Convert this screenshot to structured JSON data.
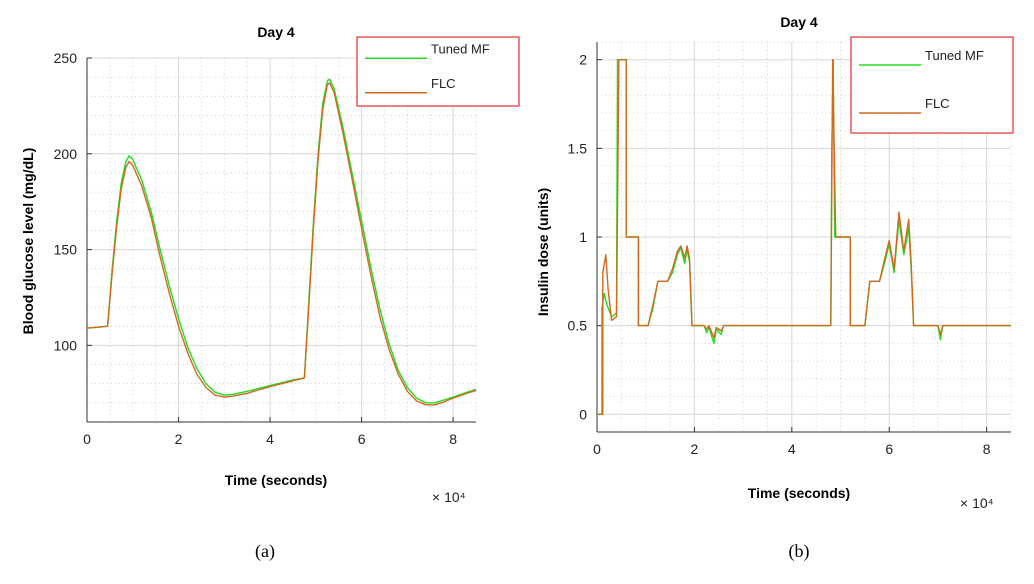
{
  "chart_data": [
    {
      "panel": "a",
      "type": "line",
      "title": "Day 4",
      "xlabel": "Time (seconds)",
      "ylabel": "Blood glucose level (mg/dL)",
      "x_multiplier": "× 10⁴",
      "xlim": [
        0,
        8.5
      ],
      "ylim": [
        60,
        250
      ],
      "xticks": [
        0,
        2,
        4,
        6,
        8
      ],
      "yticks": [
        100,
        150,
        200,
        250
      ],
      "grid": true,
      "legend_position": "top-right",
      "caption": "(a)",
      "series": [
        {
          "name": "Tuned MF",
          "color": "#22dd22",
          "points": [
            [
              0,
              109
            ],
            [
              0.25,
              109.5
            ],
            [
              0.45,
              110
            ],
            [
              0.55,
              140
            ],
            [
              0.65,
              165
            ],
            [
              0.75,
              185
            ],
            [
              0.85,
              196
            ],
            [
              0.92,
              199
            ],
            [
              1.0,
              197
            ],
            [
              1.2,
              186
            ],
            [
              1.4,
              170
            ],
            [
              1.6,
              150
            ],
            [
              1.8,
              131
            ],
            [
              2.0,
              114
            ],
            [
              2.2,
              99
            ],
            [
              2.4,
              88
            ],
            [
              2.6,
              80
            ],
            [
              2.8,
              75.5
            ],
            [
              3.0,
              74
            ],
            [
              3.2,
              74.5
            ],
            [
              3.5,
              76
            ],
            [
              4.0,
              79
            ],
            [
              4.5,
              82
            ],
            [
              4.75,
              83
            ],
            [
              4.85,
              125
            ],
            [
              4.95,
              165
            ],
            [
              5.05,
              200
            ],
            [
              5.15,
              226
            ],
            [
              5.25,
              238
            ],
            [
              5.3,
              239
            ],
            [
              5.4,
              234
            ],
            [
              5.6,
              213
            ],
            [
              5.8,
              189
            ],
            [
              6.0,
              165
            ],
            [
              6.2,
              141
            ],
            [
              6.4,
              119
            ],
            [
              6.6,
              101
            ],
            [
              6.8,
              87
            ],
            [
              7.0,
              78
            ],
            [
              7.2,
              72.5
            ],
            [
              7.4,
              70
            ],
            [
              7.6,
              70
            ],
            [
              7.8,
              71.5
            ],
            [
              8.0,
              73
            ],
            [
              8.3,
              75.5
            ],
            [
              8.5,
              77
            ]
          ]
        },
        {
          "name": "FLC",
          "color": "#d2691e",
          "points": [
            [
              0,
              109
            ],
            [
              0.25,
              109.5
            ],
            [
              0.45,
              110
            ],
            [
              0.55,
              138
            ],
            [
              0.65,
              162
            ],
            [
              0.75,
              182
            ],
            [
              0.85,
              193
            ],
            [
              0.92,
              196
            ],
            [
              1.0,
              194
            ],
            [
              1.2,
              183
            ],
            [
              1.4,
              167
            ],
            [
              1.6,
              146
            ],
            [
              1.8,
              127
            ],
            [
              2.0,
              110
            ],
            [
              2.2,
              96
            ],
            [
              2.4,
              85
            ],
            [
              2.6,
              78
            ],
            [
              2.8,
              74
            ],
            [
              3.0,
              73
            ],
            [
              3.2,
              73.5
            ],
            [
              3.5,
              75
            ],
            [
              4.0,
              78.5
            ],
            [
              4.5,
              81.5
            ],
            [
              4.75,
              83
            ],
            [
              4.85,
              122
            ],
            [
              4.95,
              162
            ],
            [
              5.05,
              197
            ],
            [
              5.15,
              223
            ],
            [
              5.25,
              236
            ],
            [
              5.3,
              237
            ],
            [
              5.4,
              232
            ],
            [
              5.6,
              210
            ],
            [
              5.8,
              186
            ],
            [
              6.0,
              161
            ],
            [
              6.2,
              137
            ],
            [
              6.4,
              115
            ],
            [
              6.6,
              98
            ],
            [
              6.8,
              85
            ],
            [
              7.0,
              76
            ],
            [
              7.2,
              71
            ],
            [
              7.4,
              69
            ],
            [
              7.6,
              69
            ],
            [
              7.8,
              70.5
            ],
            [
              8.0,
              72.5
            ],
            [
              8.3,
              75
            ],
            [
              8.5,
              76.5
            ]
          ]
        }
      ]
    },
    {
      "panel": "b",
      "type": "line",
      "title": "Day 4",
      "xlabel": "Time (seconds)",
      "ylabel": "Insulin dose (units)",
      "x_multiplier": "× 10⁴",
      "xlim": [
        0,
        8.5
      ],
      "ylim": [
        -0.1,
        2.1
      ],
      "xticks": [
        0,
        2,
        4,
        6,
        8
      ],
      "yticks": [
        0,
        0.5,
        1,
        1.5,
        2
      ],
      "grid": true,
      "legend_position": "top-right",
      "caption": "(b)",
      "series": [
        {
          "name": "Tuned MF",
          "color": "#22dd22",
          "points": [
            [
              0,
              0
            ],
            [
              0.1,
              0
            ],
            [
              0.1,
              0.6
            ],
            [
              0.15,
              0.68
            ],
            [
              0.2,
              0.62
            ],
            [
              0.3,
              0.55
            ],
            [
              0.4,
              0.57
            ],
            [
              0.42,
              2
            ],
            [
              0.6,
              2
            ],
            [
              0.6,
              1
            ],
            [
              0.85,
              1
            ],
            [
              0.85,
              0.5
            ],
            [
              1.05,
              0.5
            ],
            [
              1.15,
              0.6
            ],
            [
              1.25,
              0.75
            ],
            [
              1.45,
              0.75
            ],
            [
              1.55,
              0.8
            ],
            [
              1.65,
              0.9
            ],
            [
              1.72,
              0.94
            ],
            [
              1.8,
              0.85
            ],
            [
              1.85,
              0.93
            ],
            [
              1.9,
              0.86
            ],
            [
              1.95,
              0.5
            ],
            [
              2.2,
              0.5
            ],
            [
              2.25,
              0.46
            ],
            [
              2.3,
              0.49
            ],
            [
              2.4,
              0.4
            ],
            [
              2.45,
              0.48
            ],
            [
              2.55,
              0.45
            ],
            [
              2.6,
              0.5
            ],
            [
              4.8,
              0.5
            ],
            [
              4.82,
              1.5
            ],
            [
              4.85,
              2
            ],
            [
              4.88,
              1
            ],
            [
              5.2,
              1
            ],
            [
              5.2,
              0.5
            ],
            [
              5.5,
              0.5
            ],
            [
              5.6,
              0.75
            ],
            [
              5.8,
              0.75
            ],
            [
              5.9,
              0.85
            ],
            [
              6.0,
              0.96
            ],
            [
              6.1,
              0.8
            ],
            [
              6.2,
              1.1
            ],
            [
              6.3,
              0.9
            ],
            [
              6.4,
              1.05
            ],
            [
              6.45,
              0.82
            ],
            [
              6.5,
              0.5
            ],
            [
              7.0,
              0.5
            ],
            [
              7.05,
              0.42
            ],
            [
              7.1,
              0.5
            ],
            [
              8.5,
              0.5
            ]
          ]
        },
        {
          "name": "FLC",
          "color": "#d2691e",
          "points": [
            [
              0,
              0
            ],
            [
              0.12,
              0
            ],
            [
              0.12,
              0.8
            ],
            [
              0.18,
              0.9
            ],
            [
              0.23,
              0.7
            ],
            [
              0.3,
              0.53
            ],
            [
              0.4,
              0.55
            ],
            [
              0.45,
              2
            ],
            [
              0.6,
              2
            ],
            [
              0.6,
              1
            ],
            [
              0.85,
              1
            ],
            [
              0.85,
              0.5
            ],
            [
              1.05,
              0.5
            ],
            [
              1.15,
              0.62
            ],
            [
              1.25,
              0.75
            ],
            [
              1.45,
              0.75
            ],
            [
              1.55,
              0.82
            ],
            [
              1.65,
              0.92
            ],
            [
              1.72,
              0.95
            ],
            [
              1.8,
              0.88
            ],
            [
              1.85,
              0.95
            ],
            [
              1.9,
              0.88
            ],
            [
              1.95,
              0.5
            ],
            [
              2.2,
              0.5
            ],
            [
              2.25,
              0.48
            ],
            [
              2.3,
              0.5
            ],
            [
              2.4,
              0.43
            ],
            [
              2.45,
              0.49
            ],
            [
              2.55,
              0.47
            ],
            [
              2.6,
              0.5
            ],
            [
              4.8,
              0.5
            ],
            [
              4.84,
              2
            ],
            [
              4.9,
              1
            ],
            [
              5.2,
              1
            ],
            [
              5.2,
              0.5
            ],
            [
              5.5,
              0.5
            ],
            [
              5.6,
              0.75
            ],
            [
              5.8,
              0.75
            ],
            [
              5.9,
              0.87
            ],
            [
              6.0,
              0.98
            ],
            [
              6.1,
              0.82
            ],
            [
              6.2,
              1.14
            ],
            [
              6.3,
              0.92
            ],
            [
              6.4,
              1.1
            ],
            [
              6.45,
              0.85
            ],
            [
              6.5,
              0.5
            ],
            [
              7.0,
              0.5
            ],
            [
              7.05,
              0.45
            ],
            [
              7.1,
              0.5
            ],
            [
              8.5,
              0.5
            ]
          ]
        }
      ]
    }
  ]
}
